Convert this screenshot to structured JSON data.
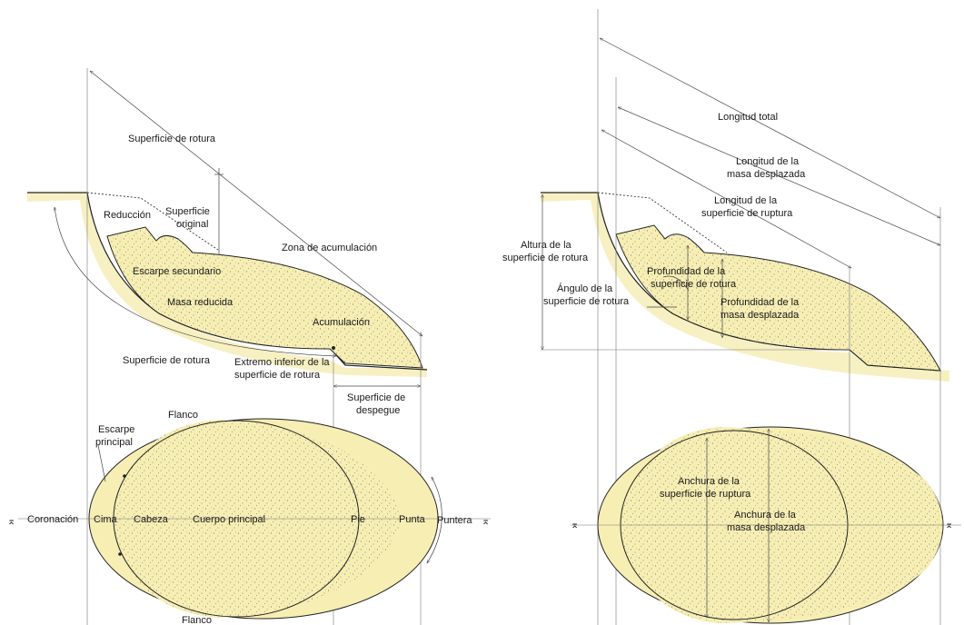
{
  "left_profile": {
    "superficie_rotura_top": "Superficie de rotura",
    "reduccion": "Reducción",
    "superficie_original": [
      "Superficie",
      "original"
    ],
    "zona_acumulacion": "Zona de acumulación",
    "escarpe_secundario": "Escarpe secundario",
    "masa_reducida": "Masa reducida",
    "acumulacion": "Acumulación",
    "superficie_rotura_bottom": "Superficie de rotura",
    "extremo_inferior": [
      "Extremo inferior de la",
      "superficie de rotura"
    ],
    "superficie_despegue": [
      "Superficie de",
      "despegue"
    ]
  },
  "left_plan": {
    "flanco_top": "Flanco",
    "flanco_bottom": "Flanco",
    "escarpe_principal": [
      "Escarpe",
      "principal"
    ],
    "coronacion": "Coronación",
    "cima": "Cima",
    "cabeza": "Cabeza",
    "cuerpo_principal": "Cuerpo principal",
    "pie": "Pie",
    "punta": "Punta",
    "puntera": "Puntera"
  },
  "right_profile": {
    "longitud_total": "Longitud total",
    "longitud_masa": [
      "Longitud de la",
      "masa desplazada"
    ],
    "longitud_superficie": [
      "Longitud de la",
      "superficie de ruptura"
    ],
    "altura": [
      "Altura de la",
      "superficie de rotura"
    ],
    "angulo": [
      "Ángulo de la",
      "superficie de rotura"
    ],
    "profundidad_superficie": [
      "Profundidad de la",
      "superficie de rotura"
    ],
    "profundidad_masa": [
      "Profundidad de la",
      "masa desplazada"
    ]
  },
  "right_plan": {
    "anchura_superficie": [
      "Anchura de la",
      "superficie de ruptura"
    ],
    "anchura_masa": [
      "Anchura de la",
      "masa desplazada"
    ]
  },
  "colors": {
    "soil": "#f6eeb3",
    "band": "#f7f0c2",
    "line": "#222222"
  }
}
